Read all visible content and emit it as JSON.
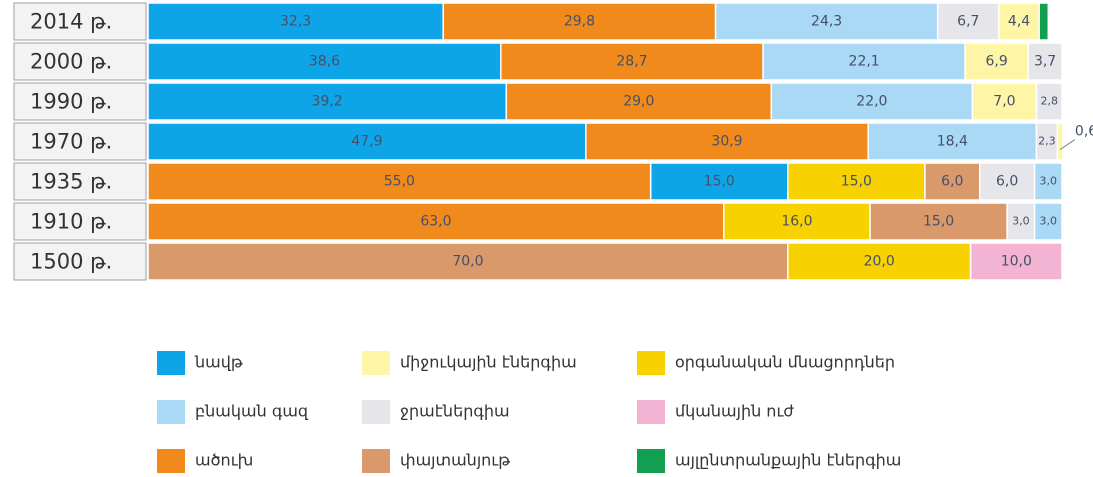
{
  "chart_data": {
    "type": "bar",
    "orientation": "horizontal",
    "stacked": true,
    "xlim": [
      0,
      100
    ],
    "series": [
      {
        "name": "նավթ",
        "color": "#0ea5e8"
      },
      {
        "name": "միջուկային էներգիա",
        "color": "#fff5a6"
      },
      {
        "name": "օրգանական մնացորդներ",
        "color": "#f8d200"
      },
      {
        "name": "բնական գազ",
        "color": "#a9d9f5"
      },
      {
        "name": "ջրաէներգիա",
        "color": "#e6e6ea"
      },
      {
        "name": "մկանային ուժ",
        "color": "#f3b4d3"
      },
      {
        "name": "ածուխ",
        "color": "#f08a1c"
      },
      {
        "name": "փայտանյութ",
        "color": "#d9996b"
      },
      {
        "name": "այլընտրանքային էներգիա",
        "color": "#12a050"
      }
    ],
    "rows": [
      {
        "category": "2014 թ.",
        "segments": [
          {
            "series": "նավթ",
            "value": 32.3,
            "value_label": "32,3"
          },
          {
            "series": "ածուխ",
            "value": 29.8,
            "value_label": "29,8"
          },
          {
            "series": "բնական գազ",
            "value": 24.3,
            "value_label": "24,3"
          },
          {
            "series": "ջրաէներգիա",
            "value": 6.7,
            "value_label": "6,7"
          },
          {
            "series": "միջուկային էներգիա",
            "value": 4.4,
            "value_label": "4,4"
          },
          {
            "series": "այլընտրանքային էներգիա",
            "value": 1
          }
        ]
      },
      {
        "category": "2000 թ.",
        "segments": [
          {
            "series": "նավթ",
            "value": 38.6,
            "value_label": "38,6"
          },
          {
            "series": "ածուխ",
            "value": 28.7,
            "value_label": "28,7"
          },
          {
            "series": "բնական գազ",
            "value": 22.1,
            "value_label": "22,1"
          },
          {
            "series": "միջուկային էներգիա",
            "value": 6.9,
            "value_label": "6,9"
          },
          {
            "series": "ջրաէներգիա",
            "value": 3.7,
            "value_label": "3,7"
          }
        ]
      },
      {
        "category": "1990 թ.",
        "segments": [
          {
            "series": "նավթ",
            "value": 39.2,
            "value_label": "39,2"
          },
          {
            "series": "ածուխ",
            "value": 29.0,
            "value_label": "29,0"
          },
          {
            "series": "բնական գազ",
            "value": 22.0,
            "value_label": "22,0"
          },
          {
            "series": "միջուկային էներգիա",
            "value": 7.0,
            "value_label": "7,0"
          },
          {
            "series": "ջրաէներգիա",
            "value": 2.8,
            "value_label": "2,8"
          }
        ]
      },
      {
        "category": "1970 թ.",
        "segments": [
          {
            "series": "նավթ",
            "value": 47.9,
            "value_label": "47,9"
          },
          {
            "series": "ածուխ",
            "value": 30.9,
            "value_label": "30,9"
          },
          {
            "series": "բնական գազ",
            "value": 18.4,
            "value_label": "18,4"
          },
          {
            "series": "ջրաէներգիա",
            "value": 2.3,
            "value_label": "2,3"
          },
          {
            "series": "միջուկային էներգիա",
            "value": 0.6,
            "value_label": "0,6"
          }
        ]
      },
      {
        "category": "1935 թ.",
        "segments": [
          {
            "series": "ածուխ",
            "value": 55.0,
            "value_label": "55,0"
          },
          {
            "series": "նավթ",
            "value": 15.0,
            "value_label": "15,0"
          },
          {
            "series": "օրգանական մնացորդներ",
            "value": 15.0,
            "value_label": "15,0"
          },
          {
            "series": "փայտանյութ",
            "value": 6.0,
            "value_label": "6,0"
          },
          {
            "series": "ջրաէներգիա",
            "value": 6.0,
            "value_label": "6,0"
          },
          {
            "series": "բնական գազ",
            "value": 3.0,
            "value_label": "3,0"
          }
        ]
      },
      {
        "category": "1910 թ.",
        "segments": [
          {
            "series": "ածուխ",
            "value": 63.0,
            "value_label": "63,0"
          },
          {
            "series": "օրգանական մնացորդներ",
            "value": 16.0,
            "value_label": "16,0"
          },
          {
            "series": "փայտանյութ",
            "value": 15.0,
            "value_label": "15,0"
          },
          {
            "series": "ջրաէներգիա",
            "value": 3.0,
            "value_label": "3,0"
          },
          {
            "series": "բնական գազ",
            "value": 3.0,
            "value_label": "3,0"
          }
        ]
      },
      {
        "category": "1500 թ.",
        "segments": [
          {
            "series": "փայտանյութ",
            "value": 70.0,
            "value_label": "70,0"
          },
          {
            "series": "օրգանական մնացորդներ",
            "value": 20.0,
            "value_label": "20,0"
          },
          {
            "series": "մկանային ուժ",
            "value": 10.0,
            "value_label": "10,0"
          }
        ]
      }
    ]
  }
}
